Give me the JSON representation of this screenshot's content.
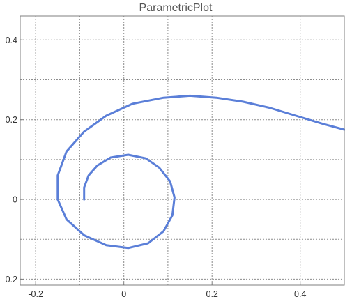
{
  "chart_data": {
    "type": "line",
    "title": "ParametricPlot",
    "xlabel": "",
    "ylabel": "",
    "xlim": [
      -0.235,
      0.5
    ],
    "ylim": [
      -0.215,
      0.46
    ],
    "grid": true,
    "x_ticks": [
      -0.2,
      0,
      0.2,
      0.4
    ],
    "x_tick_labels": [
      "-0.2",
      "0",
      "0.2",
      "0.4"
    ],
    "y_ticks": [
      -0.2,
      0,
      0.2,
      0.4
    ],
    "y_tick_labels": [
      "-0.2",
      "0",
      "0.2",
      "0.4"
    ],
    "x_gridlines": [
      -0.2,
      -0.1,
      0,
      0.1,
      0.2,
      0.3,
      0.4
    ],
    "y_gridlines": [
      -0.2,
      -0.1,
      0,
      0.1,
      0.2,
      0.3,
      0.4
    ],
    "series": [
      {
        "color": "#5b7fd8",
        "points": [
          [
            -0.09,
            0
          ],
          [
            -0.09,
            0.03
          ],
          [
            -0.08,
            0.06
          ],
          [
            -0.06,
            0.085
          ],
          [
            -0.03,
            0.105
          ],
          [
            0.01,
            0.112
          ],
          [
            0.05,
            0.103
          ],
          [
            0.08,
            0.08
          ],
          [
            0.105,
            0.045
          ],
          [
            0.115,
            0.005
          ],
          [
            0.11,
            -0.04
          ],
          [
            0.09,
            -0.08
          ],
          [
            0.055,
            -0.11
          ],
          [
            0.01,
            -0.122
          ],
          [
            -0.04,
            -0.115
          ],
          [
            -0.09,
            -0.09
          ],
          [
            -0.13,
            -0.05
          ],
          [
            -0.15,
            0
          ],
          [
            -0.15,
            0.06
          ],
          [
            -0.13,
            0.12
          ],
          [
            -0.09,
            0.17
          ],
          [
            -0.04,
            0.21
          ],
          [
            0.02,
            0.24
          ],
          [
            0.09,
            0.255
          ],
          [
            0.15,
            0.26
          ],
          [
            0.21,
            0.255
          ],
          [
            0.27,
            0.245
          ],
          [
            0.33,
            0.23
          ],
          [
            0.39,
            0.21
          ],
          [
            0.45,
            0.19
          ],
          [
            0.5,
            0.175
          ]
        ]
      }
    ]
  }
}
